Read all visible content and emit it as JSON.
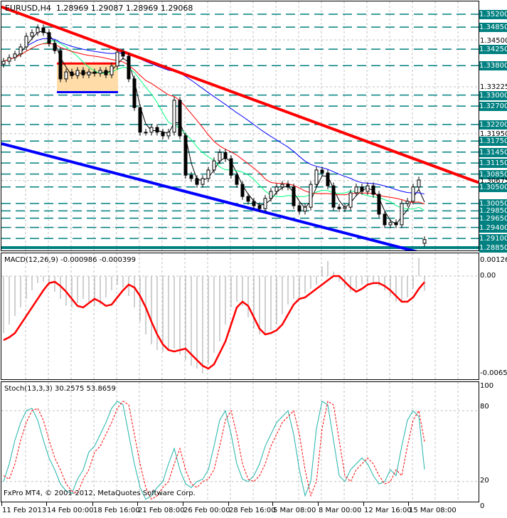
{
  "header": {
    "symbol": "EURUSD,H4",
    "ohlc": "1.28969 1.29087 1.28969 1.29068"
  },
  "macd_title": "MACD(12,26,9) -0.000986 -0.000399",
  "stoch_title": "Stoch(13,3,3) 30.2575 53.8659",
  "copyright": "FxPro MT4, © 2001-2012, MetaQuotes Software Corp.",
  "colors": {
    "level": "#008080",
    "trend_down": "#ff0000",
    "trend_up": "#0000ff",
    "zone": "#ffdca8",
    "stoch_main": "#20b2aa",
    "stoch_signal": "#ff0000",
    "macd_signal": "#ff0000",
    "macd_hist": "#c0c0c0"
  },
  "price_levels": [
    "1.35200",
    "1.34850",
    "1.34250",
    "1.33800",
    "1.33000",
    "1.32700",
    "1.32200",
    "1.31750",
    "1.31450",
    "1.31150",
    "1.30850",
    "1.30500",
    "1.30050",
    "1.29850",
    "1.29650",
    "1.29400",
    "1.29100",
    "1.28850"
  ],
  "price_ticks": [
    "1.34500",
    "1.33225",
    "1.31950",
    "1.30675"
  ],
  "macd_ticks": [
    "0.001263",
    "0.00",
    "-0.00650"
  ],
  "stoch_ticks": [
    "100",
    "80",
    "20",
    "0"
  ],
  "time_labels": [
    "11 Feb 2013",
    "14 Feb 00:00",
    "18 Feb 16:00",
    "21 Feb 08:00",
    "26 Feb 00:00",
    "28 Feb 16:00",
    "5 Mar 08:00",
    "8 Mar 00:00",
    "12 Mar 16:00",
    "15 Mar 08:00"
  ],
  "chart_data": [
    {
      "type": "candlestick",
      "title": "EURUSD,H4",
      "ylim": [
        1.287,
        1.3555
      ],
      "close": [
        1.3392,
        1.3402,
        1.3412,
        1.3431,
        1.346,
        1.347,
        1.3483,
        1.347,
        1.3441,
        1.3421,
        1.3344,
        1.3363,
        1.3353,
        1.3367,
        1.3355,
        1.3363,
        1.3359,
        1.3367,
        1.3355,
        1.3379,
        1.3417,
        1.3406,
        1.3344,
        1.3266,
        1.3199,
        1.3199,
        1.3212,
        1.3199,
        1.3189,
        1.3199,
        1.3286,
        1.3189,
        1.3082,
        1.3073,
        1.3057,
        1.3073,
        1.3096,
        1.3121,
        1.3144,
        1.3127,
        1.3082,
        1.3057,
        1.3024,
        1.3011,
        1.2999,
        1.2991,
        1.3019,
        1.3038,
        1.305,
        1.3057,
        1.305,
        1.2999,
        1.2984,
        1.2995,
        1.3057,
        1.3096,
        1.3088,
        1.3053,
        1.2995,
        1.2991,
        1.2995,
        1.3034,
        1.305,
        1.3038,
        1.3053,
        1.303,
        1.2976,
        1.2947,
        1.2953,
        1.2947,
        1.3005,
        1.3011,
        1.305,
        1.3069,
        1.29068
      ],
      "last_open": 1.28969,
      "trendlines": [
        {
          "color": "red",
          "from_price": 1.354,
          "to_price": 1.3062
        },
        {
          "color": "blue",
          "from_price": 1.3168,
          "to_price": 1.283
        }
      ],
      "range_zone": {
        "top": 1.3386,
        "bottom": 1.3308
      }
    },
    {
      "type": "line+bar",
      "title": "MACD(12,26,9)",
      "ylim": [
        -0.0068,
        0.0014
      ],
      "signal": [
        -0.00427,
        -0.00408,
        -0.0038,
        -0.00323,
        -0.00266,
        -0.00209,
        -0.00152,
        -0.00095,
        -0.00047,
        -0.00038,
        -0.00066,
        -0.00104,
        -0.00152,
        -0.00199,
        -0.00209,
        -0.0018,
        -0.00152,
        -0.00171,
        -0.00199,
        -0.0019,
        -0.00142,
        -0.00095,
        -0.00057,
        -0.00076,
        -0.00133,
        -0.00209,
        -0.00304,
        -0.00389,
        -0.00455,
        -0.00493,
        -0.00503,
        -0.00493,
        -0.00484,
        -0.00522,
        -0.0056,
        -0.00598,
        -0.00617,
        -0.00588,
        -0.00512,
        -0.00436,
        -0.00323,
        -0.00209,
        -0.00171,
        -0.00199,
        -0.00275,
        -0.00351,
        -0.00389,
        -0.0038,
        -0.00361,
        -0.00323,
        -0.00256,
        -0.0019,
        -0.00152,
        -0.00142,
        -0.00114,
        -0.00085,
        -0.00057,
        -0.00028,
        0.0,
        0.0,
        -0.00038,
        -0.00076,
        -0.00104,
        -0.00085,
        -0.00057,
        -0.00047,
        -0.00047,
        -0.00066,
        -0.00095,
        -0.00133,
        -0.00171,
        -0.00171,
        -0.00142,
        -0.00085,
        -0.000399
      ],
      "main": [
        -0.0038,
        -0.00323,
        -0.00266,
        -0.00209,
        -0.00152,
        -0.00095,
        -0.00047,
        -0.00038,
        -0.00066,
        -0.00104,
        -0.00152,
        -0.00199,
        -0.00209,
        -0.0018,
        -0.00152,
        -0.00171,
        -0.00199,
        -0.0019,
        -0.00142,
        -0.00095,
        -0.00057,
        -0.00076,
        -0.00133,
        -0.00209,
        -0.00304,
        -0.00389,
        -0.00455,
        -0.00493,
        -0.00503,
        -0.00493,
        -0.00484,
        -0.00522,
        -0.0056,
        -0.00598,
        -0.00617,
        -0.0065,
        -0.00588,
        -0.00512,
        -0.00436,
        -0.00323,
        -0.00209,
        -0.00171,
        -0.00199,
        -0.00275,
        -0.00351,
        -0.00389,
        -0.0038,
        -0.00361,
        -0.00323,
        -0.00256,
        -0.0019,
        -0.00152,
        -0.00142,
        -0.00114,
        -0.00085,
        -0.00057,
        0.0006,
        0.001,
        0.0003,
        -0.00038,
        -0.00076,
        -0.00104,
        -0.00085,
        -0.00057,
        -0.00047,
        -0.00047,
        -0.00066,
        -0.00095,
        -0.00133,
        -0.00171,
        -0.00171,
        -0.00142,
        -0.00085,
        0.0012,
        -0.000986
      ]
    },
    {
      "type": "line",
      "title": "Stoch(13,3,3)",
      "ylim": [
        0,
        100
      ],
      "main": [
        20,
        35,
        55,
        70,
        80,
        82,
        72,
        55,
        40,
        30,
        18,
        12,
        10,
        22,
        30,
        45,
        50,
        60,
        70,
        82,
        88,
        85,
        60,
        35,
        15,
        5,
        8,
        15,
        20,
        35,
        48,
        30,
        18,
        15,
        20,
        22,
        30,
        50,
        72,
        80,
        60,
        35,
        22,
        20,
        25,
        35,
        50,
        60,
        70,
        75,
        80,
        60,
        30,
        8,
        20,
        65,
        88,
        85,
        55,
        25,
        20,
        30,
        35,
        40,
        35,
        25,
        18,
        20,
        30,
        25,
        50,
        72,
        80,
        75,
        30.2575
      ],
      "signal": [
        25,
        22,
        35,
        55,
        70,
        80,
        82,
        72,
        55,
        40,
        30,
        18,
        12,
        10,
        22,
        30,
        45,
        50,
        60,
        70,
        82,
        88,
        85,
        60,
        35,
        15,
        5,
        8,
        15,
        20,
        35,
        48,
        30,
        18,
        15,
        20,
        22,
        30,
        50,
        72,
        80,
        60,
        35,
        22,
        20,
        25,
        35,
        50,
        60,
        70,
        75,
        80,
        60,
        30,
        8,
        20,
        65,
        88,
        85,
        55,
        25,
        20,
        30,
        35,
        40,
        35,
        25,
        18,
        20,
        30,
        25,
        50,
        72,
        80,
        53.8659
      ]
    }
  ]
}
